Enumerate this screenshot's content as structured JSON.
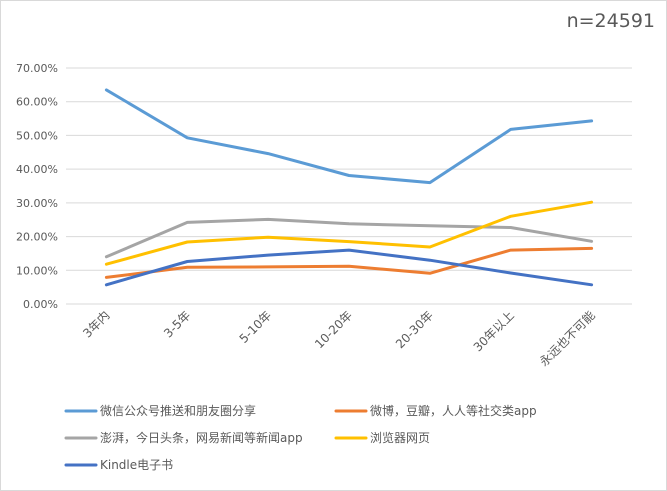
{
  "note": "n=24591",
  "chart_data": {
    "type": "line",
    "title": "",
    "xlabel": "",
    "ylabel": "",
    "categories": [
      "3年内",
      "3-5年",
      "5-10年",
      "10-20年",
      "20-30年",
      "30年以上",
      "永远也不可能"
    ],
    "ylim": [
      0,
      70
    ],
    "yticks": [
      0,
      10,
      20,
      30,
      40,
      50,
      60,
      70
    ],
    "ytick_labels": [
      "0.00%",
      "10.00%",
      "20.00%",
      "30.00%",
      "40.00%",
      "50.00%",
      "60.00%",
      "70.00%"
    ],
    "grid": true,
    "legend_position": "bottom",
    "series": [
      {
        "name": "微信公众号推送和朋友圈分享",
        "color": "#5b9bd5",
        "values": [
          63.5,
          49.3,
          44.6,
          38.1,
          36.0,
          51.8,
          54.3
        ]
      },
      {
        "name": "微博，豆瓣，人人等社交类app",
        "color": "#ed7d31",
        "values": [
          7.9,
          10.9,
          11.0,
          11.2,
          9.1,
          16.0,
          16.5
        ]
      },
      {
        "name": "澎湃，今日头条，网易新闻等新闻app",
        "color": "#a5a5a5",
        "values": [
          14.0,
          24.2,
          25.1,
          23.8,
          23.2,
          22.7,
          18.6
        ]
      },
      {
        "name": "浏览器网页",
        "color": "#ffc000",
        "values": [
          11.8,
          18.4,
          19.8,
          18.5,
          16.9,
          26.0,
          30.2
        ]
      },
      {
        "name": "Kindle电子书",
        "color": "#4472c4",
        "values": [
          5.7,
          12.6,
          14.5,
          16.0,
          13.0,
          9.2,
          5.7
        ]
      }
    ]
  }
}
